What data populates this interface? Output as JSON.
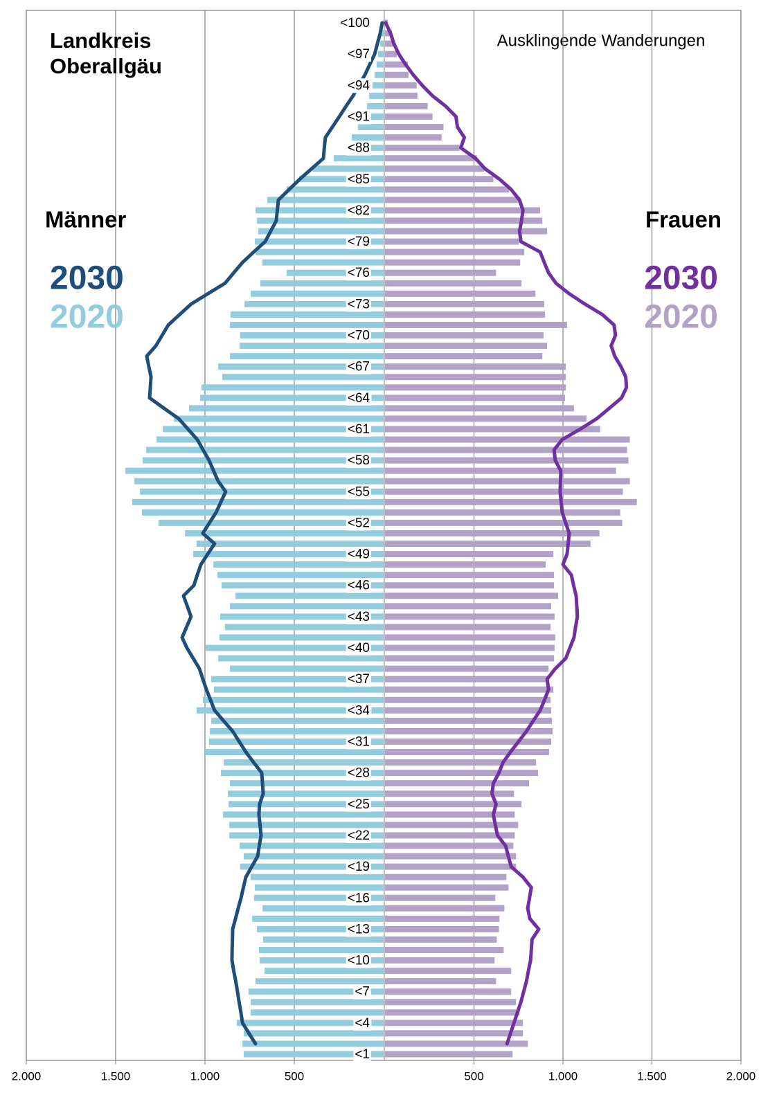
{
  "chart_data": {
    "type": "pyramid",
    "title": "Landkreis Oberallgäu",
    "subtitle": "Ausklingende Wanderungen",
    "categories": [
      "<1",
      null,
      null,
      "<4",
      null,
      null,
      "<7",
      null,
      null,
      "<10",
      null,
      null,
      "<13",
      null,
      null,
      "<16",
      null,
      null,
      "<19",
      null,
      null,
      "<22",
      null,
      null,
      "<25",
      null,
      null,
      "<28",
      null,
      null,
      "<31",
      null,
      null,
      "<34",
      null,
      null,
      "<37",
      null,
      null,
      "<40",
      null,
      null,
      "<43",
      null,
      null,
      "<46",
      null,
      null,
      "<49",
      null,
      null,
      "<52",
      null,
      null,
      "<55",
      null,
      null,
      "<58",
      null,
      null,
      "<61",
      null,
      null,
      "<64",
      null,
      null,
      "<67",
      null,
      null,
      "<70",
      null,
      null,
      "<73",
      null,
      null,
      "<76",
      null,
      null,
      "<79",
      null,
      null,
      "<82",
      null,
      null,
      "<85",
      null,
      null,
      "<88",
      null,
      null,
      "<91",
      null,
      null,
      "<94",
      null,
      null,
      "<97",
      null,
      null,
      "<100"
    ],
    "xlim": [
      0,
      2000
    ],
    "xticks": [
      {
        "value": 2000,
        "label": "2.000"
      },
      {
        "value": 1500,
        "label": "1.500"
      },
      {
        "value": 1000,
        "label": "1.000"
      },
      500
    ],
    "grid": true,
    "groups": [
      {
        "name": "Männer",
        "side": "left",
        "series": [
          {
            "name": "2030",
            "type": "line",
            "color": "#1f4e79",
            "values": [
              null,
              717,
              754,
              790,
              799,
              809,
              818,
              828,
              839,
              849,
              848,
              846,
              845,
              829,
              814,
              798,
              785,
              771,
              738,
              705,
              696,
              686,
              692,
              698,
              694,
              674,
              678,
              682,
              727,
              771,
              808,
              845,
              896,
              946,
              969,
              992,
              1012,
              1031,
              1066,
              1101,
              1128,
              1103,
              1078,
              1099,
              1120,
              1062,
              1043,
              1023,
              985,
              946,
              1012,
              975,
              938,
              911,
              884,
              926,
              952,
              977,
              1010,
              1043,
              1095,
              1147,
              1229,
              1310,
              1306,
              1302,
              1314,
              1326,
              1275,
              1240,
              1205,
              1142,
              1078,
              983,
              888,
              839,
              790,
              727,
              663,
              632,
              601,
              595,
              589,
              529,
              469,
              403,
              337,
              332,
              326,
              287,
              248,
              210,
              171,
              138,
              105,
              78,
              50,
              35,
              19,
              8
            ]
          },
          {
            "name": "2020",
            "type": "bar",
            "color": "#93cddd",
            "values": [
              783,
              790,
              783,
              822,
              744,
              744,
              756,
              717,
              667,
              694,
              698,
              674,
              709,
              736,
              678,
              725,
              721,
              744,
              802,
              783,
              806,
              864,
              864,
              899,
              868,
              872,
              860,
              911,
              895,
              1000,
              977,
              973,
              965,
              1047,
              1012,
              950,
              965,
              860,
              926,
              996,
              919,
              888,
              915,
              860,
              829,
              907,
              930,
              953,
              1066,
              1047,
              1112,
              1260,
              1353,
              1407,
              1364,
              1395,
              1446,
              1349,
              1329,
              1271,
              1236,
              1174,
              1089,
              1027,
              1019,
              903,
              926,
              860,
              806,
              802,
              860,
              857,
              779,
              744,
              690,
              543,
              678,
              717,
              721,
              702,
              709,
              717,
              651,
              543,
              473,
              399,
              279,
              209,
              178,
              143,
              105,
              93,
              81,
              62,
              50,
              39,
              31,
              19,
              12,
              4
            ]
          }
        ]
      },
      {
        "name": "Frauen",
        "side": "right",
        "series": [
          {
            "name": "2030",
            "type": "line",
            "color": "#7030a0",
            "values": [
              null,
              686,
              705,
              725,
              744,
              764,
              779,
              795,
              806,
              818,
              822,
              826,
              864,
              814,
              802,
              812,
              822,
              775,
              709,
              693,
              678,
              632,
              620,
              609,
              624,
              601,
              609,
              640,
              663,
              705,
              750,
              795,
              833,
              872,
              896,
              919,
              911,
              957,
              1016,
              1039,
              1062,
              1071,
              1081,
              1078,
              1074,
              1060,
              1047,
              1000,
              1023,
              1029,
              1035,
              1015,
              996,
              990,
              984,
              986,
              988,
              957,
              950,
              996,
              1097,
              1190,
              1260,
              1329,
              1357,
              1353,
              1326,
              1291,
              1271,
              1295,
              1287,
              1221,
              1124,
              1035,
              961,
              919,
              895,
              872,
              764,
              756,
              767,
              775,
              756,
              709,
              643,
              562,
              508,
              426,
              446,
              407,
              399,
              341,
              267,
              209,
              159,
              116,
              78,
              50,
              31,
              4
            ]
          },
          {
            "name": "2020",
            "type": "bar",
            "color": "#b3a2c7",
            "values": [
              717,
              802,
              775,
              775,
              756,
              736,
              709,
              624,
              709,
              616,
              667,
              628,
              640,
              643,
              671,
              620,
              694,
              682,
              736,
              736,
              721,
              729,
              748,
              729,
              767,
              725,
              810,
              860,
              849,
              922,
              934,
              942,
              938,
              934,
              930,
              946,
              919,
              919,
              950,
              953,
              957,
              930,
              953,
              934,
              973,
              950,
              950,
              903,
              946,
              1155,
              1205,
              1333,
              1322,
              1415,
              1337,
              1376,
              1298,
              1368,
              1360,
              1376,
              1209,
              1132,
              1062,
              1012,
              1016,
              1016,
              1016,
              884,
              911,
              891,
              1023,
              899,
              895,
              845,
              767,
              624,
              760,
              783,
              752,
              911,
              884,
              872,
              760,
              698,
              609,
              558,
              516,
              419,
              318,
              329,
              267,
              240,
              182,
              178,
              132,
              128,
              66,
              54,
              39,
              16
            ]
          }
        ]
      }
    ]
  }
}
